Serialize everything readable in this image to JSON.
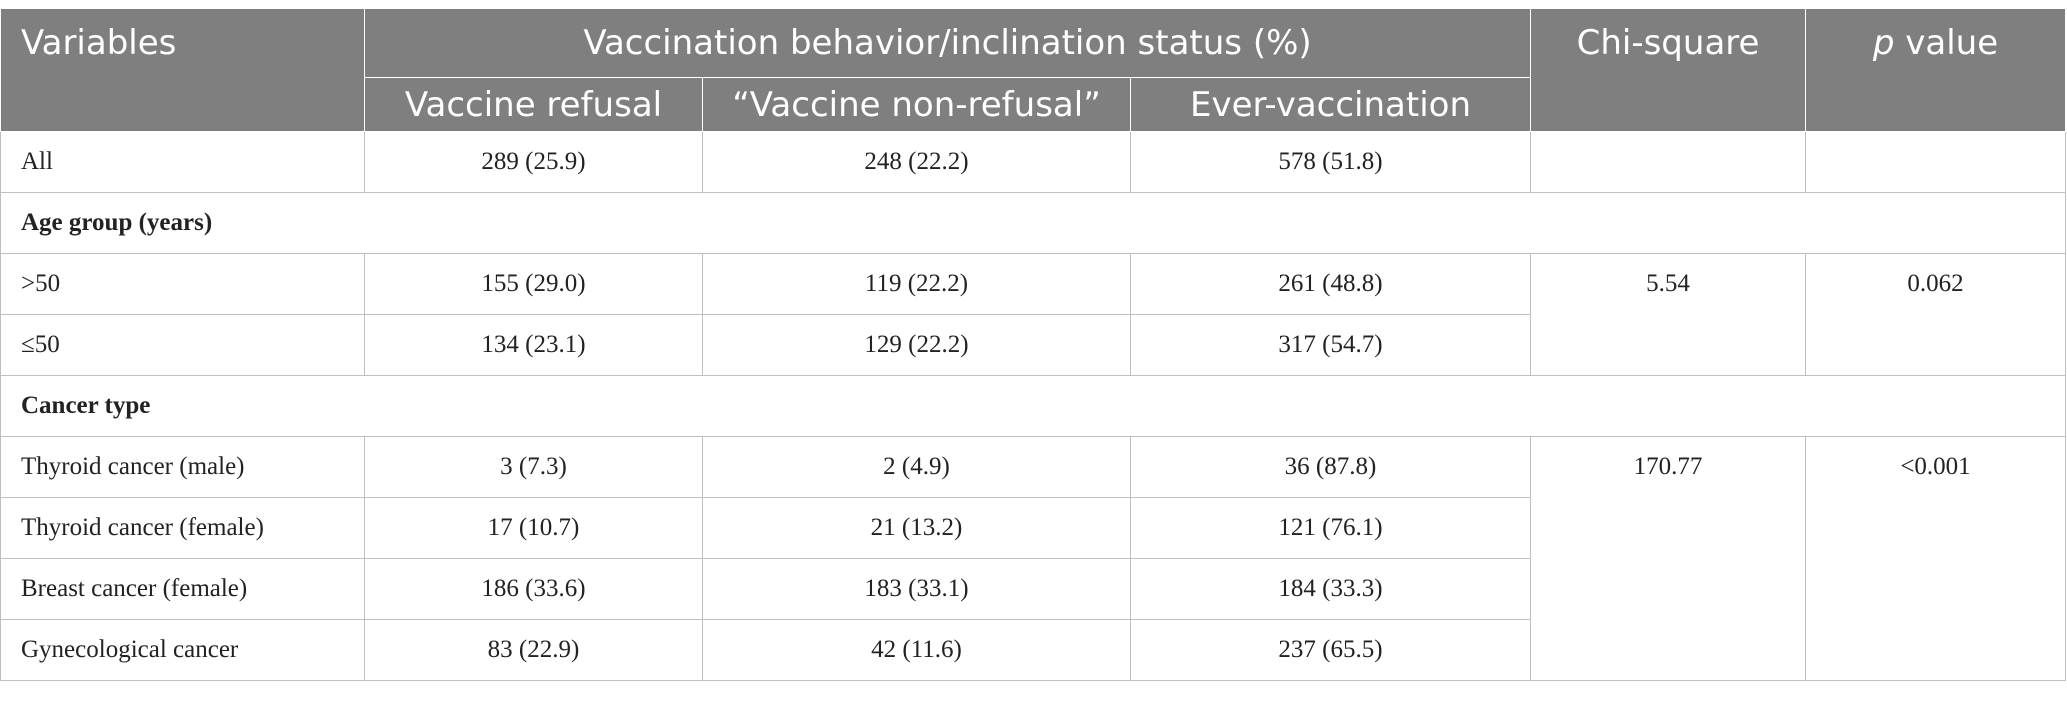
{
  "table": {
    "headers": {
      "variables": "Variables",
      "group_header": "Vaccination behavior/inclination status (%)",
      "sub": [
        "Vaccine refusal",
        "“Vaccine non-refusal”",
        "Ever-vaccination"
      ],
      "chi_square": "Chi-square",
      "p_italic": "p",
      "p_rest": " value"
    },
    "all_row": {
      "label": "All",
      "values": [
        "289 (25.9)",
        "248 (22.2)",
        "578 (51.8)"
      ]
    },
    "age": {
      "title": "Age group (years)",
      "rows": [
        {
          "label": ">50",
          "values": [
            "155 (29.0)",
            "119 (22.2)",
            "261 (48.8)"
          ]
        },
        {
          "label": "≤50",
          "values": [
            "134 (23.1)",
            "129 (22.2)",
            "317 (54.7)"
          ]
        }
      ],
      "chi_square": "5.54",
      "p_value": "0.062"
    },
    "cancer": {
      "title": "Cancer type",
      "rows": [
        {
          "label": "Thyroid cancer (male)",
          "values": [
            "3 (7.3)",
            "2 (4.9)",
            "36 (87.8)"
          ]
        },
        {
          "label": "Thyroid cancer (female)",
          "values": [
            "17 (10.7)",
            "21 (13.2)",
            "121 (76.1)"
          ]
        },
        {
          "label": "Breast cancer (female)",
          "values": [
            "186 (33.6)",
            "183 (33.1)",
            "184 (33.3)"
          ]
        },
        {
          "label": "Gynecological cancer",
          "values": [
            "83 (22.9)",
            "42 (11.6)",
            "237 (65.5)"
          ]
        }
      ],
      "chi_square": "170.77",
      "p_value": "<0.001"
    }
  }
}
